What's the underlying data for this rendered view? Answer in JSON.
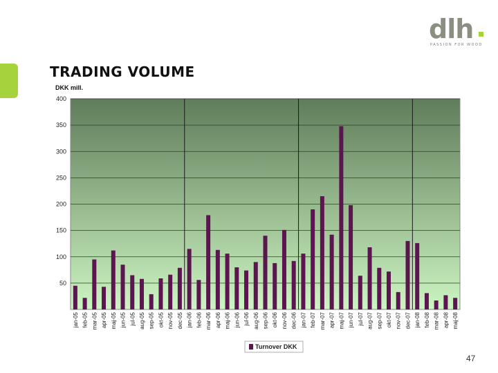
{
  "header": {
    "title": "TRADING VOLUME",
    "logo_text": "dlh",
    "logo_tagline": "PASSION FOR WOOD"
  },
  "footer": {
    "page_number": "47"
  },
  "colors": {
    "accent": "#a6d23c",
    "bar_fill": "#5b1650",
    "plot_top": "#5f7d5a",
    "plot_bottom": "#cdf4c2",
    "logo_gray": "#8a8f82"
  },
  "chart_data": {
    "type": "bar",
    "ylabel": "DKK mill.",
    "ylim": [
      0,
      400
    ],
    "yticks": [
      50,
      100,
      150,
      200,
      250,
      300,
      350,
      400
    ],
    "grid": true,
    "legend_position": "bottom",
    "year_dividers_after": [
      "dec-05",
      "dec-06",
      "dec-07"
    ],
    "categories": [
      "jan-05",
      "feb-05",
      "mar-05",
      "apr-05",
      "maj-05",
      "jun-05",
      "jul-05",
      "aug-05",
      "sep-05",
      "okt-05",
      "nov-05",
      "dec-05",
      "jan-06",
      "feb-06",
      "mar-06",
      "apr-06",
      "maj-06",
      "jun-06",
      "jul-06",
      "aug-06",
      "sep-06",
      "okt-06",
      "nov-06",
      "dec-06",
      "jan-07",
      "feb-07",
      "mar-07",
      "apr-07",
      "maj-07",
      "jun-07",
      "jul-07",
      "aug-07",
      "sep-07",
      "okt-07",
      "nov-07",
      "dec-07",
      "jan-08",
      "feb-08",
      "mar-08",
      "apr-08",
      "maj-08"
    ],
    "series": [
      {
        "name": "Turnover DKK",
        "values": [
          45,
          22,
          95,
          43,
          112,
          85,
          65,
          58,
          29,
          59,
          66,
          79,
          115,
          56,
          179,
          113,
          106,
          80,
          74,
          90,
          140,
          88,
          151,
          92,
          106,
          190,
          215,
          142,
          348,
          198,
          64,
          118,
          79,
          72,
          33,
          130,
          126,
          31,
          17,
          27,
          22
        ]
      }
    ]
  }
}
